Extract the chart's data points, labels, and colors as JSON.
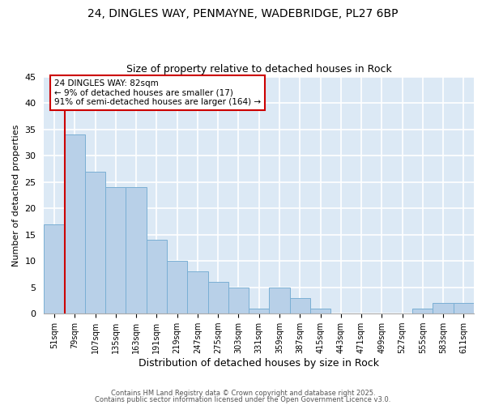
{
  "title1": "24, DINGLES WAY, PENMAYNE, WADEBRIDGE, PL27 6BP",
  "title2": "Size of property relative to detached houses in Rock",
  "xlabel": "Distribution of detached houses by size in Rock",
  "ylabel": "Number of detached properties",
  "categories": [
    "51sqm",
    "79sqm",
    "107sqm",
    "135sqm",
    "163sqm",
    "191sqm",
    "219sqm",
    "247sqm",
    "275sqm",
    "303sqm",
    "331sqm",
    "359sqm",
    "387sqm",
    "415sqm",
    "443sqm",
    "471sqm",
    "499sqm",
    "527sqm",
    "555sqm",
    "583sqm",
    "611sqm"
  ],
  "values": [
    17,
    34,
    27,
    24,
    24,
    14,
    10,
    8,
    6,
    5,
    1,
    5,
    3,
    1,
    0,
    0,
    0,
    0,
    1,
    2,
    2
  ],
  "bar_color": "#b8d0e8",
  "bar_edge_color": "#7aafd4",
  "background_color": "#dce9f5",
  "ylim": [
    0,
    45
  ],
  "yticks": [
    0,
    5,
    10,
    15,
    20,
    25,
    30,
    35,
    40,
    45
  ],
  "vline_x_index": 1,
  "vline_color": "#cc0000",
  "annotation_text": "24 DINGLES WAY: 82sqm\n← 9% of detached houses are smaller (17)\n91% of semi-detached houses are larger (164) →",
  "annotation_box_color": "#ffffff",
  "annotation_box_edge": "#cc0000",
  "footer1": "Contains HM Land Registry data © Crown copyright and database right 2025.",
  "footer2": "Contains public sector information licensed under the Open Government Licence v3.0."
}
